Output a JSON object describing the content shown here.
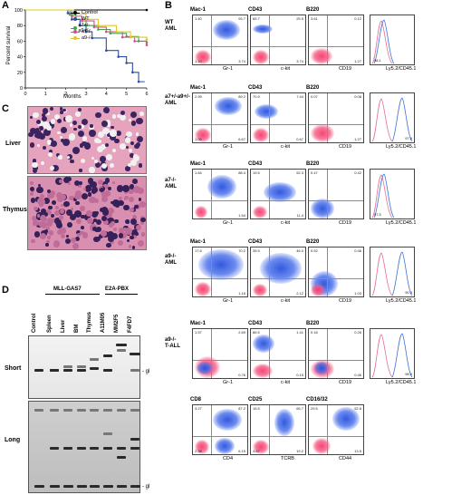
{
  "panels": {
    "A": "A",
    "B": "B",
    "C": "C",
    "D": "D"
  },
  "panel_a": {
    "chart_data": {
      "type": "line",
      "ylabel": "Percent survival",
      "xlabel": "Months",
      "xlim": [
        0,
        6
      ],
      "ylim": [
        0,
        100
      ],
      "xticks": [
        "0",
        "1",
        "2",
        "3",
        "4",
        "5",
        "6"
      ],
      "yticks": [
        "0",
        "20",
        "40",
        "60",
        "80",
        "100"
      ],
      "series": [
        {
          "name": "Control",
          "color": "#000000",
          "x": [
            0,
            6
          ],
          "y": [
            100,
            100
          ]
        },
        {
          "name": "WT",
          "color": "#2c4ea8",
          "x": [
            0,
            2.1,
            2.3,
            2.7,
            3.0,
            3.3,
            4.0,
            4.6,
            5.0,
            5.3,
            5.6
          ],
          "y": [
            100,
            96,
            88,
            80,
            72,
            64,
            48,
            40,
            32,
            20,
            8
          ]
        },
        {
          "name": "a7+/-a9+/-",
          "color": "#3aa64a",
          "x": [
            0,
            2.2,
            2.5,
            3.0,
            3.6,
            4.2,
            5.0,
            5.6,
            6.0
          ],
          "y": [
            100,
            94,
            88,
            80,
            75,
            70,
            66,
            60,
            58
          ]
        },
        {
          "name": "a7-/-",
          "color": "#d94b8f",
          "x": [
            0,
            2.3,
            2.8,
            3.4,
            4.0,
            4.8,
            5.4,
            6.0
          ],
          "y": [
            100,
            92,
            86,
            78,
            72,
            65,
            60,
            55
          ]
        },
        {
          "name": "a9-/-",
          "color": "#e0c81e",
          "x": [
            0,
            2.4,
            3.0,
            3.6,
            4.5,
            5.2,
            6.0
          ],
          "y": [
            100,
            95,
            88,
            80,
            72,
            65,
            62
          ]
        }
      ]
    }
  },
  "panel_b": {
    "row_labels": [
      [
        "WT",
        "AML"
      ],
      [
        "a7+/-a9+/-",
        "AML"
      ],
      [
        "a7-/-",
        "AML"
      ],
      [
        "a9-/-",
        "AML"
      ],
      [
        "a9-/-",
        "T-ALL"
      ]
    ],
    "rows": [
      {
        "plots": [
          {
            "y": "Mac-1",
            "x": "Gr-1",
            "q": [
              "1.40",
              "93.7",
              "1.10",
              "3.74"
            ]
          },
          {
            "y": "CD43",
            "x": "c-kit",
            "q": [
              "65.7",
              "25.5",
              "",
              "3.74"
            ]
          },
          {
            "y": "B220",
            "x": "CD19",
            "q": [
              "3.61",
              "0.12",
              "",
              "1.27"
            ]
          }
        ],
        "hist": {
          "x": "Ly5.2/CD45.1",
          "v": "98.1"
        }
      },
      {
        "plots": [
          {
            "y": "Mac-1",
            "x": "Gr-1",
            "q": [
              "2.95",
              "89.2",
              "1.05",
              "6.67"
            ]
          },
          {
            "y": "CD43",
            "x": "c-kit",
            "q": [
              "70.9",
              "7.44",
              "",
              "0.67"
            ]
          },
          {
            "y": "B220",
            "x": "CD19",
            "q": [
              "0.07",
              "0.08",
              "",
              "1.27"
            ]
          }
        ],
        "hist": {
          "x": "Ly5.2/CD45.1",
          "v": "97.8"
        }
      },
      {
        "plots": [
          {
            "y": "Mac-1",
            "x": "Gr-1",
            "q": [
              "1.84",
              "88.4",
              "",
              "1.54"
            ]
          },
          {
            "y": "CD43",
            "x": "c-kit",
            "q": [
              "19.5",
              "52.3",
              "",
              "11.4"
            ]
          },
          {
            "y": "B220",
            "x": "CD19",
            "q": [
              "0.47",
              "0.42",
              "",
              ""
            ]
          }
        ],
        "hist": {
          "x": "Ly5.2/CD45.1",
          "v": "97.5"
        }
      },
      {
        "plots": [
          {
            "y": "Mac-1",
            "x": "Gr-1",
            "q": [
              "17.6",
              "70.2",
              "",
              "1.16"
            ]
          },
          {
            "y": "CD43",
            "x": "c-kit",
            "q": [
              "35.9",
              "46.0",
              "",
              "2.12"
            ]
          },
          {
            "y": "B220",
            "x": "CD19",
            "q": [
              "0.52",
              "0.46",
              "",
              "1.03"
            ]
          }
        ],
        "hist": {
          "x": "Ly5.2/CD45.1",
          "v": "90.3"
        }
      },
      {
        "plots": [
          {
            "y": "Mac-1",
            "x": "Gr-1",
            "q": [
              "1.57",
              "2.69",
              "",
              "0.76"
            ]
          },
          {
            "y": "CD43",
            "x": "c-kit",
            "q": [
              "86.5",
              "1.41",
              "",
              "0.15"
            ]
          },
          {
            "y": "B220",
            "x": "CD19",
            "q": [
              "0.18",
              "0.26",
              "",
              "0.46"
            ]
          }
        ],
        "hist": {
          "x": "Ly5.2/CD45.1",
          "v": "98.5"
        }
      },
      {
        "plots": [
          {
            "y": "CD8",
            "x": "CD4",
            "q": [
              "3.27",
              "87.2",
              "2.38",
              "6.15"
            ]
          },
          {
            "y": "CD25",
            "x": "TCRB",
            "q": [
              "15.5",
              "65.7",
              "4.67",
              "19.2"
            ]
          },
          {
            "y": "CD16/32",
            "x": "CD44",
            "q": [
              "29.5",
              "52.6",
              "",
              "13.5"
            ]
          }
        ]
      }
    ]
  },
  "panel_c": {
    "labels": [
      "Liver",
      "Thymus"
    ]
  },
  "panel_d": {
    "groups": [
      "MLL-GAS7",
      "E2A-PBX"
    ],
    "lanes": [
      "Control",
      "Spleen",
      "Liver",
      "BM",
      "Thymus",
      "A11M05",
      "MM2F5",
      "F4FD7"
    ],
    "blots": [
      "Short",
      "Long"
    ],
    "marker": "- gl"
  }
}
